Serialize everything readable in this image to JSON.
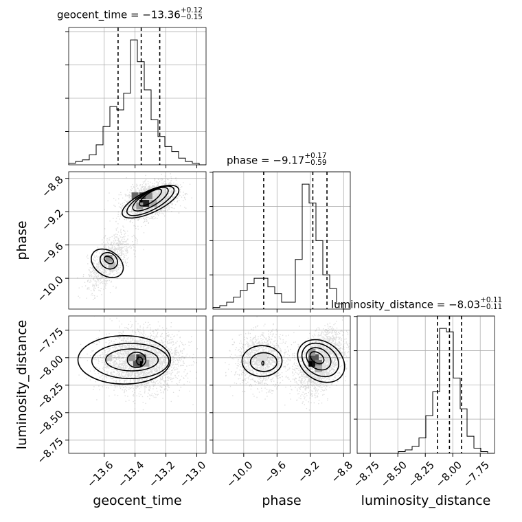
{
  "chart_data": {
    "type": "corner",
    "parameters": [
      "geocent_time",
      "phase",
      "luminosity_distance"
    ],
    "titles": [
      {
        "name": "geocent_time",
        "median": "−13.36",
        "plus": "+0.12",
        "minus": "−0.15"
      },
      {
        "name": "phase",
        "median": "−9.17",
        "plus": "+0.17",
        "minus": "−0.59"
      },
      {
        "name": "luminosity_distance",
        "median": "−8.03",
        "plus": "+0.11",
        "minus": "−0.11"
      }
    ],
    "xlim": {
      "geocent_time": [
        -13.83,
        -12.94
      ],
      "phase": [
        -10.37,
        -8.72
      ],
      "luminosity_distance": [
        -8.87,
        -7.62
      ]
    },
    "ylim": {
      "phase": [
        -10.37,
        -8.72
      ],
      "luminosity_distance": [
        -8.87,
        -7.62
      ]
    },
    "ticks": {
      "geocent_time": {
        "values": [
          -13.6,
          -13.4,
          -13.2,
          -13.0
        ],
        "labels": [
          "−13.6",
          "−13.4",
          "−13.2",
          "−13.0"
        ]
      },
      "phase": {
        "values": [
          -10.0,
          -9.6,
          -9.2,
          -8.8
        ],
        "labels": [
          "−10.0",
          "−9.6",
          "−9.2",
          "−8.8"
        ]
      },
      "luminosity_distance": {
        "values": [
          -8.75,
          -8.5,
          -8.25,
          -8.0,
          -7.75
        ],
        "labels": [
          "−8.75",
          "−8.50",
          "−8.25",
          "−8.00",
          "−7.75"
        ]
      }
    },
    "quantiles": {
      "geocent_time": [
        -13.51,
        -13.36,
        -13.24
      ],
      "phase": [
        -9.76,
        -9.17,
        -9.0
      ],
      "luminosity_distance": [
        -8.14,
        -8.03,
        -7.92
      ]
    },
    "histograms": {
      "geocent_time": {
        "edges": [
          -13.83,
          -12.94
        ],
        "counts": [
          1,
          2,
          3,
          6,
          12,
          23,
          35,
          33,
          43,
          75,
          62,
          45,
          27,
          17,
          11,
          8,
          4,
          2,
          1,
          0
        ]
      },
      "phase": {
        "edges": [
          -10.37,
          -8.72
        ],
        "counts": [
          1,
          2,
          4,
          7,
          11,
          15,
          18,
          18,
          13,
          9,
          4,
          4,
          29,
          73,
          62,
          40,
          20,
          12,
          3,
          0
        ]
      },
      "luminosity_distance": {
        "edges": [
          -8.87,
          -7.62
        ],
        "counts": [
          0,
          0,
          0,
          0,
          0,
          0,
          1,
          2,
          4,
          9,
          22,
          36,
          73,
          71,
          44,
          26,
          10,
          3,
          1,
          0
        ]
      }
    },
    "grid": true
  }
}
